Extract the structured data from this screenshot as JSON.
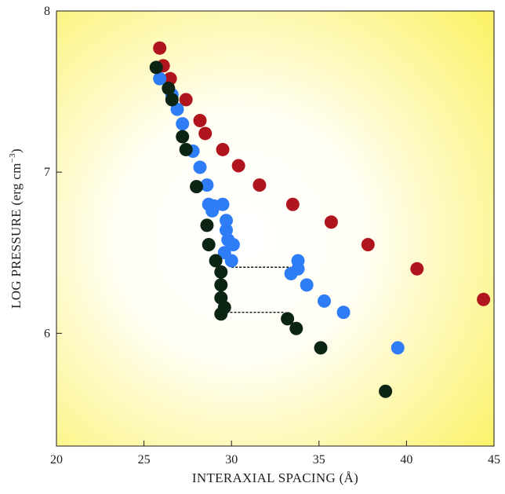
{
  "chart_data": {
    "type": "scatter",
    "title": "",
    "xlabel": "INTERAXIAL SPACING (Å)",
    "ylabel_main": "LOG PRESSURE (erg cm",
    "ylabel_sup": "−3",
    "ylabel_close": ")",
    "xlim": [
      20,
      45
    ],
    "ylim": [
      5.3,
      8.0
    ],
    "x_ticks": [
      20,
      25,
      30,
      35,
      40,
      45
    ],
    "y_ticks": [
      6,
      7,
      8
    ],
    "grid": false,
    "background": "yellow-gradient",
    "series": [
      {
        "color": "#b0141c",
        "points": [
          [
            25.9,
            7.77
          ],
          [
            26.1,
            7.66
          ],
          [
            26.5,
            7.58
          ],
          [
            27.4,
            7.45
          ],
          [
            28.2,
            7.32
          ],
          [
            28.5,
            7.24
          ],
          [
            29.5,
            7.14
          ],
          [
            30.4,
            7.04
          ],
          [
            31.6,
            6.92
          ],
          [
            33.5,
            6.8
          ],
          [
            35.7,
            6.69
          ],
          [
            37.8,
            6.55
          ],
          [
            40.6,
            6.4
          ],
          [
            44.4,
            6.21
          ]
        ]
      },
      {
        "color": "#2f7df6",
        "points": [
          [
            25.9,
            7.58
          ],
          [
            26.6,
            7.48
          ],
          [
            26.9,
            7.39
          ],
          [
            27.2,
            7.3
          ],
          [
            27.8,
            7.13
          ],
          [
            28.2,
            7.03
          ],
          [
            28.6,
            6.92
          ],
          [
            28.7,
            6.8
          ],
          [
            29.0,
            6.79
          ],
          [
            29.5,
            6.8
          ],
          [
            28.9,
            6.76
          ],
          [
            29.7,
            6.7
          ],
          [
            29.7,
            6.64
          ],
          [
            29.8,
            6.58
          ],
          [
            30.1,
            6.55
          ],
          [
            29.6,
            6.5
          ],
          [
            30.0,
            6.45
          ],
          [
            33.8,
            6.45
          ],
          [
            33.8,
            6.4
          ],
          [
            33.4,
            6.37
          ],
          [
            34.3,
            6.3
          ],
          [
            35.3,
            6.2
          ],
          [
            36.4,
            6.13
          ],
          [
            39.5,
            5.91
          ]
        ]
      },
      {
        "color": "#0c2414",
        "points": [
          [
            25.7,
            7.65
          ],
          [
            26.4,
            7.52
          ],
          [
            26.6,
            7.45
          ],
          [
            27.2,
            7.22
          ],
          [
            27.4,
            7.14
          ],
          [
            28.0,
            6.91
          ],
          [
            28.6,
            6.67
          ],
          [
            28.7,
            6.55
          ],
          [
            29.1,
            6.45
          ],
          [
            29.4,
            6.38
          ],
          [
            29.4,
            6.3
          ],
          [
            29.4,
            6.22
          ],
          [
            29.6,
            6.16
          ],
          [
            29.4,
            6.12
          ],
          [
            33.2,
            6.09
          ],
          [
            33.7,
            6.03
          ],
          [
            35.1,
            5.91
          ],
          [
            38.8,
            5.64
          ]
        ]
      }
    ],
    "connectors": [
      {
        "x1": 30.0,
        "x2": 33.4,
        "y": 6.41
      },
      {
        "x1": 29.7,
        "x2": 33.0,
        "y": 6.13
      }
    ]
  }
}
